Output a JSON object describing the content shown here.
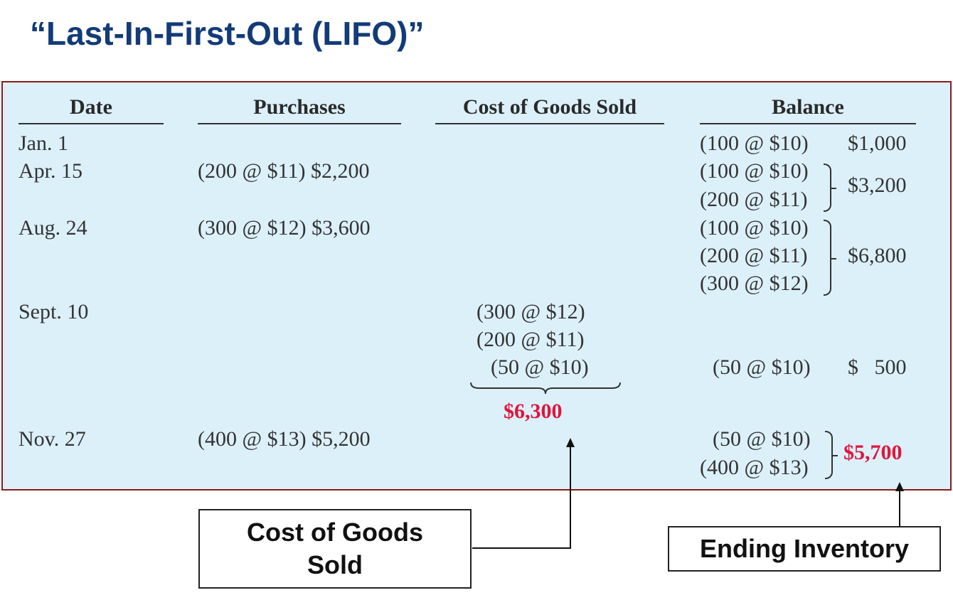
{
  "title": "“Last-In-First-Out (LIFO)”",
  "headers": {
    "date": "Date",
    "purchases": "Purchases",
    "cogs": "Cost of Goods Sold",
    "balance": "Balance"
  },
  "rows": {
    "jan1": {
      "date": "Jan. 1",
      "balance_lines": [
        "(100 @ $10)"
      ],
      "balance_total": "$1,000"
    },
    "apr15": {
      "date": "Apr. 15",
      "purchase": "(200 @ $11) $2,200",
      "balance_lines": [
        "(100 @ $10)",
        "(200 @ $11)"
      ],
      "balance_total": "$3,200"
    },
    "aug24": {
      "date": "Aug. 24",
      "purchase": "(300 @ $12) $3,600",
      "balance_lines": [
        "(100 @ $10)",
        "(200 @ $11)",
        "(300 @ $12)"
      ],
      "balance_total": "$6,800"
    },
    "sept10": {
      "date": "Sept. 10",
      "cogs_lines": [
        "(300 @ $12)",
        "(200 @ $11)",
        "(50 @ $10)"
      ],
      "cogs_total": "$6,300",
      "balance_lines": [
        "(50 @ $10)"
      ],
      "balance_total": "$   500"
    },
    "nov27": {
      "date": "Nov. 27",
      "purchase": "(400 @ $13) $5,200",
      "balance_lines": [
        "(50 @ $10)",
        "(400 @ $13)"
      ],
      "balance_total": "$5,700"
    }
  },
  "callouts": {
    "cogs_line1": "Cost of Goods",
    "cogs_line2": "Sold",
    "ending_inventory": "Ending Inventory"
  },
  "colors": {
    "title": "#133b78",
    "panel_bg": "#dcf0fa",
    "panel_border": "#8b1a1a",
    "highlight": "#e0153b"
  }
}
